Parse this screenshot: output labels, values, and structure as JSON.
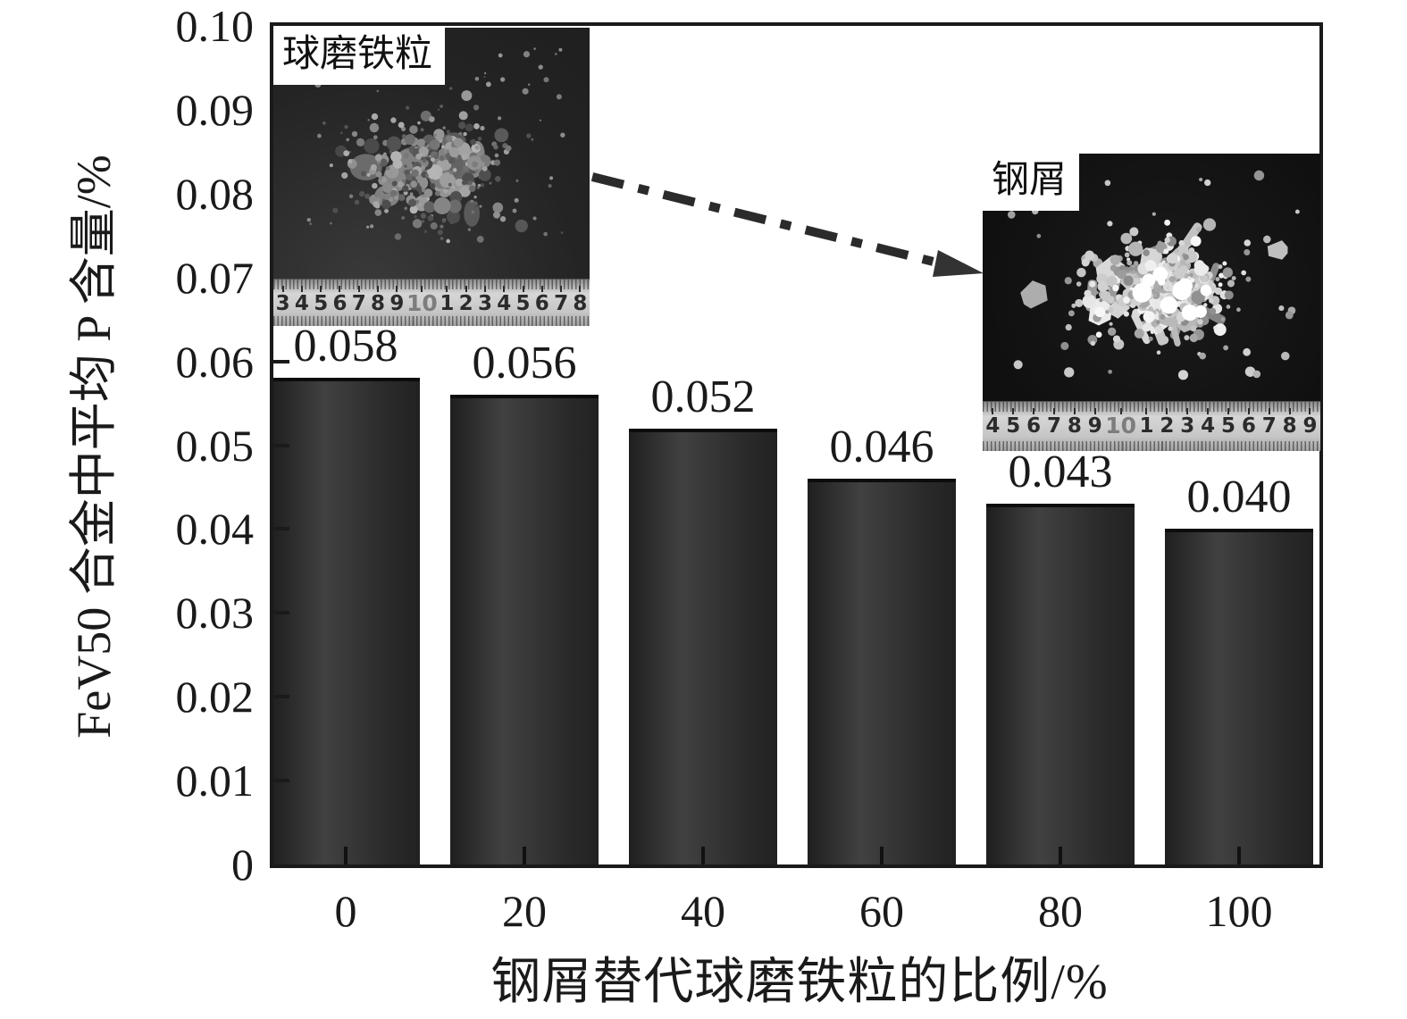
{
  "chart_data": {
    "type": "bar",
    "title": "",
    "categories": [
      0,
      20,
      40,
      60,
      80,
      100
    ],
    "values": [
      0.058,
      0.056,
      0.052,
      0.046,
      0.043,
      0.04
    ],
    "bar_labels": [
      "0.058",
      "0.056",
      "0.052",
      "0.046",
      "0.043",
      "0.040"
    ],
    "xlabel": "钢屑替代球磨铁粒的比例/%",
    "ylabel": "FeV50 合金中平均 P 含量/%",
    "ylim": [
      0,
      0.1
    ],
    "ytick_labels": [
      "0",
      "0.01",
      "0.02",
      "0.03",
      "0.04",
      "0.05",
      "0.06",
      "0.07",
      "0.08",
      "0.09",
      "0.10"
    ],
    "xtick_labels": [
      "0",
      "20",
      "40",
      "60",
      "80",
      "100"
    ],
    "grid": false,
    "legend": null,
    "bar_color": "#2e2e2e",
    "axis_color": "#1a1a1a"
  },
  "insets": {
    "left_photo": {
      "label": "球磨铁粒",
      "ruler_numbers": [
        "3",
        "4",
        "5",
        "6",
        "7",
        "8",
        "9",
        "10",
        "1",
        "2",
        "3",
        "4",
        "5",
        "6",
        "7",
        "8"
      ]
    },
    "right_photo": {
      "label": "钢屑",
      "ruler_numbers": [
        "4",
        "5",
        "6",
        "7",
        "8",
        "9",
        "10",
        "1",
        "2",
        "3",
        "4",
        "5",
        "6",
        "7",
        "8",
        "9"
      ]
    }
  }
}
